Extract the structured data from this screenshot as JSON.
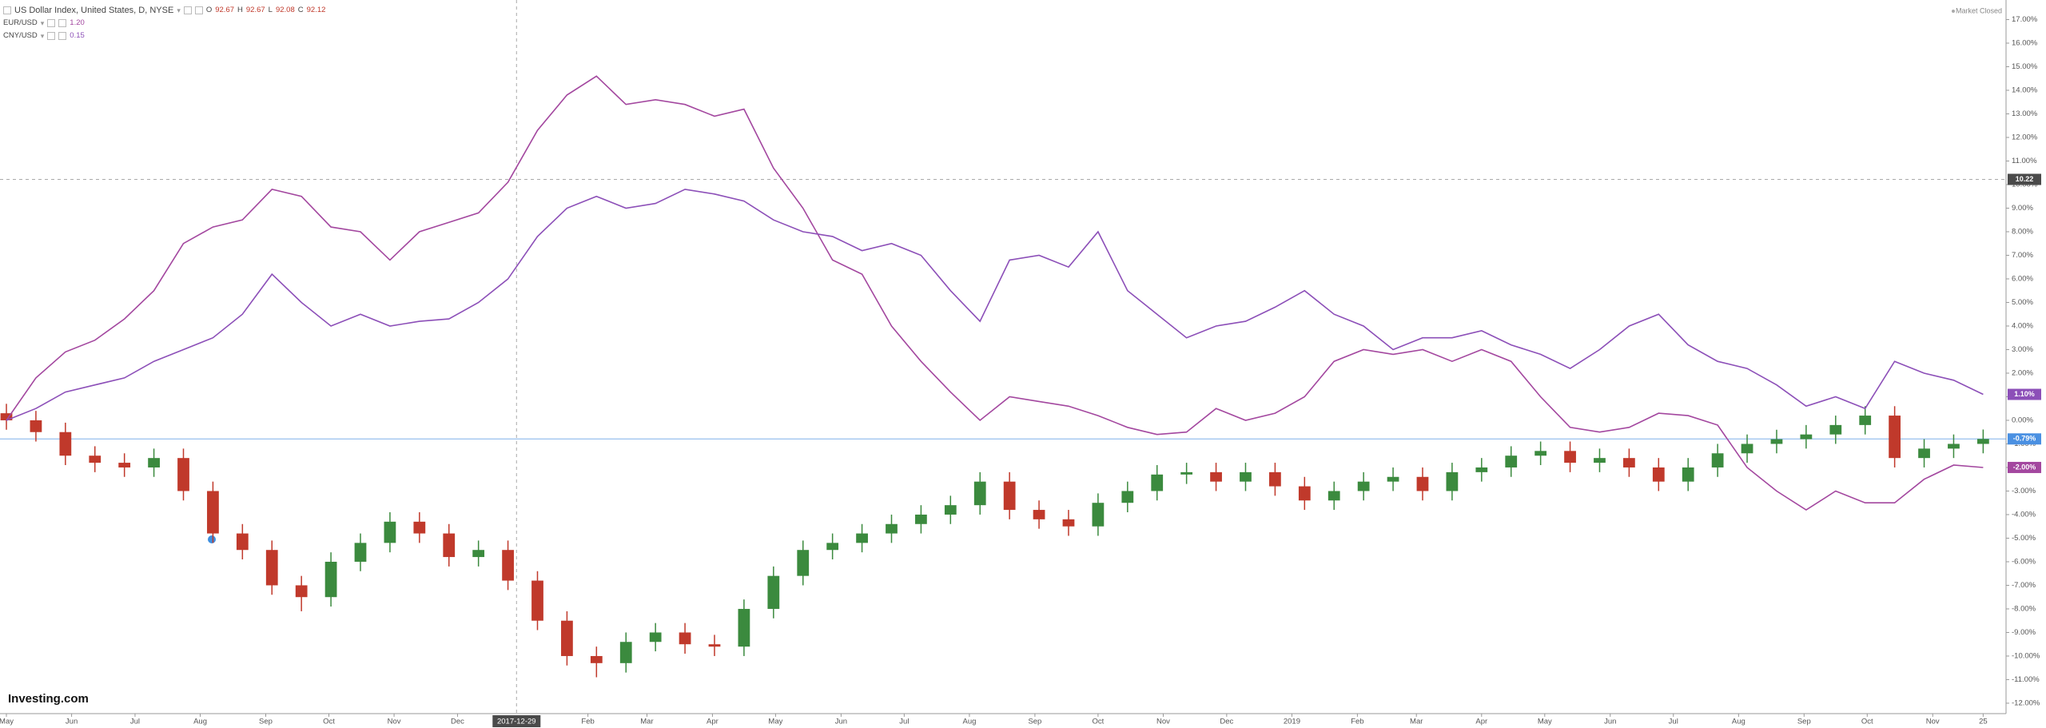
{
  "chart_data": {
    "type": "candlestick",
    "title": "US Dollar Index, United States, D, NYSE",
    "ohlc": [
      {
        "name": "O",
        "value": 92.67
      },
      {
        "name": "H",
        "value": 92.67
      },
      {
        "name": "L",
        "value": 92.08
      },
      {
        "name": "C",
        "value": 92.12
      }
    ],
    "market_status": "Market Closed",
    "logo": "Investing.com",
    "open": [
      0.3,
      0.0,
      -0.5,
      -1.5,
      -1.8,
      -2.0,
      -1.6,
      -3.0,
      -4.8,
      -5.5,
      -7.0,
      -7.5,
      -6.0,
      -5.2,
      -4.3,
      -4.8,
      -5.8,
      -5.5,
      -6.8,
      -8.5,
      -10.0,
      -10.3,
      -9.4,
      -9.0,
      -9.5,
      -9.6,
      -8.0,
      -6.6,
      -5.5,
      -5.2,
      -4.8,
      -4.4,
      -4.0,
      -3.6,
      -2.6,
      -3.8,
      -4.2,
      -4.5,
      -3.5,
      -3.0,
      -2.3,
      -2.2,
      -2.6,
      -2.2,
      -2.8,
      -3.4,
      -3.0,
      -2.6,
      -2.4,
      -3.0,
      -2.2,
      -2.0,
      -1.5,
      -1.3,
      -1.8,
      -1.6,
      -2.0,
      -2.6,
      -2.0,
      -1.4,
      -1.0,
      -0.8,
      -0.6,
      -0.2,
      0.2,
      -1.6,
      -1.2,
      -1.0
    ],
    "high": [
      0.7,
      0.4,
      -0.1,
      -1.1,
      -1.4,
      -1.2,
      -1.2,
      -2.6,
      -4.4,
      -5.1,
      -6.6,
      -5.6,
      -4.8,
      -3.9,
      -3.9,
      -4.4,
      -5.1,
      -5.1,
      -6.4,
      -8.1,
      -9.6,
      -9.0,
      -8.6,
      -8.6,
      -9.1,
      -7.6,
      -6.2,
      -5.1,
      -4.8,
      -4.4,
      -4.0,
      -3.6,
      -3.2,
      -2.2,
      -2.2,
      -3.4,
      -3.8,
      -3.1,
      -2.6,
      -1.9,
      -1.8,
      -1.8,
      -1.8,
      -1.8,
      -2.4,
      -2.6,
      -2.2,
      -2.0,
      -2.0,
      -1.8,
      -1.6,
      -1.1,
      -0.9,
      -0.9,
      -1.2,
      -1.2,
      -1.6,
      -1.6,
      -1.0,
      -0.6,
      -0.4,
      -0.2,
      0.2,
      0.6,
      0.6,
      -0.8,
      -0.6,
      -0.39
    ],
    "low": [
      -0.4,
      -0.9,
      -1.9,
      -2.2,
      -2.4,
      -2.4,
      -3.4,
      -5.2,
      -5.9,
      -7.4,
      -8.1,
      -7.9,
      -6.4,
      -5.6,
      -5.2,
      -6.2,
      -6.2,
      -7.2,
      -8.9,
      -10.4,
      -10.9,
      -10.7,
      -9.8,
      -9.9,
      -10.0,
      -10.0,
      -8.4,
      -7.0,
      -5.9,
      -5.6,
      -5.2,
      -4.8,
      -4.4,
      -4.0,
      -4.2,
      -4.6,
      -4.9,
      -4.9,
      -3.9,
      -3.4,
      -2.7,
      -3.0,
      -3.0,
      -3.2,
      -3.8,
      -3.8,
      -3.4,
      -3.0,
      -3.4,
      -3.4,
      -2.6,
      -2.4,
      -1.9,
      -2.2,
      -2.2,
      -2.4,
      -3.0,
      -3.0,
      -2.4,
      -1.8,
      -1.4,
      -1.2,
      -1.0,
      -0.6,
      -2.0,
      -2.0,
      -1.6,
      -1.4
    ],
    "close": [
      0.0,
      -0.5,
      -1.5,
      -1.8,
      -2.0,
      -1.6,
      -3.0,
      -4.8,
      -5.5,
      -7.0,
      -7.5,
      -6.0,
      -5.2,
      -4.3,
      -4.8,
      -5.8,
      -5.5,
      -6.8,
      -8.5,
      -10.0,
      -10.3,
      -9.4,
      -9.0,
      -9.5,
      -9.6,
      -8.0,
      -6.6,
      -5.5,
      -5.2,
      -4.8,
      -4.4,
      -4.0,
      -3.6,
      -2.6,
      -3.8,
      -4.2,
      -4.5,
      -3.5,
      -3.0,
      -2.3,
      -2.2,
      -2.6,
      -2.2,
      -2.8,
      -3.4,
      -3.0,
      -2.6,
      -2.4,
      -3.0,
      -2.2,
      -2.0,
      -1.5,
      -1.3,
      -1.8,
      -1.6,
      -2.0,
      -2.6,
      -2.0,
      -1.4,
      -1.0,
      -0.8,
      -0.6,
      -0.2,
      0.2,
      -1.6,
      -1.2,
      -1.0,
      -0.79
    ],
    "close_labels": [
      null,
      null,
      null,
      null,
      null,
      null,
      null,
      null,
      null,
      null,
      null,
      null,
      null,
      null,
      null,
      null,
      null,
      null,
      null,
      null,
      null,
      null,
      null,
      null,
      null,
      null,
      null,
      null,
      null,
      null,
      null,
      null,
      null,
      null,
      null,
      null,
      null,
      null,
      null,
      null,
      null,
      null,
      null,
      null,
      null,
      null,
      null,
      null,
      null,
      null,
      null,
      null,
      null,
      null,
      null,
      null,
      null,
      null,
      null,
      null,
      null,
      null,
      null,
      null,
      null,
      null,
      null,
      "-0.79%"
    ],
    "up_color": "#3b8a3e",
    "down_color": "#c0392b",
    "last_line_color": "#4a90e2",
    "series": [
      {
        "name": "EUR/USD",
        "color": "#a3479f",
        "crosshair_value": {
          "value": 1.2,
          "label": "1.20"
        },
        "values": [
          0,
          1.8,
          2.9,
          3.4,
          4.3,
          5.5,
          7.5,
          8.2,
          8.5,
          9.8,
          9.5,
          8.2,
          8.0,
          6.8,
          8.0,
          8.4,
          8.8,
          10.1,
          12.3,
          13.8,
          14.6,
          13.4,
          13.6,
          13.4,
          12.9,
          13.2,
          10.7,
          9.0,
          6.8,
          6.2,
          4.0,
          2.5,
          1.2,
          0.0,
          1.0,
          0.8,
          0.6,
          0.2,
          -0.3,
          -0.6,
          -0.5,
          0.5,
          0.0,
          0.3,
          1.0,
          2.5,
          3.0,
          2.8,
          3.0,
          2.5,
          3.0,
          2.5,
          1.0,
          -0.3,
          -0.5,
          -0.3,
          0.3,
          0.2,
          -0.2,
          -2.0,
          -3.0,
          -3.8,
          -3.0,
          -3.5,
          -3.5,
          -2.5,
          -1.9,
          -2.0
        ],
        "value_labels": [
          null,
          null,
          null,
          null,
          null,
          null,
          null,
          null,
          null,
          null,
          null,
          null,
          null,
          null,
          null,
          null,
          null,
          null,
          null,
          null,
          null,
          null,
          null,
          null,
          null,
          null,
          null,
          null,
          null,
          null,
          null,
          null,
          null,
          null,
          null,
          null,
          null,
          null,
          null,
          null,
          null,
          null,
          null,
          null,
          null,
          null,
          null,
          null,
          null,
          null,
          null,
          null,
          null,
          null,
          null,
          null,
          null,
          null,
          null,
          null,
          null,
          null,
          null,
          null,
          null,
          null,
          null,
          "-2.00%"
        ]
      },
      {
        "name": "CNY/USD",
        "color": "#8c4fb8",
        "crosshair_value": 0.15,
        "values": [
          0,
          0.5,
          1.2,
          1.5,
          1.8,
          2.5,
          3.0,
          3.5,
          4.5,
          6.2,
          5.0,
          4.0,
          4.5,
          4.0,
          4.2,
          4.3,
          5.0,
          6.0,
          7.8,
          9.0,
          9.5,
          9.0,
          9.2,
          9.8,
          9.6,
          9.3,
          8.5,
          8.0,
          7.8,
          7.2,
          7.5,
          7.0,
          5.5,
          4.2,
          6.8,
          7.0,
          6.5,
          8.0,
          5.5,
          4.5,
          3.5,
          4.0,
          4.2,
          4.8,
          5.5,
          4.5,
          4.0,
          3.0,
          3.5,
          3.5,
          3.8,
          3.2,
          2.8,
          2.2,
          3.0,
          4.0,
          4.5,
          3.2,
          2.5,
          2.2,
          1.5,
          0.6,
          1.0,
          0.5,
          2.5,
          2.0,
          1.7,
          1.1
        ],
        "value_labels": [
          null,
          null,
          null,
          null,
          null,
          null,
          null,
          null,
          null,
          null,
          null,
          null,
          null,
          null,
          null,
          null,
          null,
          null,
          null,
          null,
          null,
          null,
          null,
          null,
          null,
          null,
          null,
          null,
          null,
          null,
          null,
          null,
          null,
          null,
          null,
          null,
          null,
          null,
          null,
          null,
          null,
          null,
          null,
          null,
          null,
          null,
          null,
          null,
          null,
          null,
          null,
          null,
          null,
          null,
          null,
          null,
          null,
          null,
          null,
          null,
          null,
          null,
          null,
          null,
          null,
          null,
          null,
          "1.10%"
        ]
      }
    ],
    "xlim": [
      -0.217,
      67.64
    ],
    "xticks": [
      {
        "value": 0,
        "label": "May"
      },
      {
        "value": 2.21,
        "label": "Jun"
      },
      {
        "value": 4.36,
        "label": "Jul"
      },
      {
        "value": 6.57,
        "label": "Aug"
      },
      {
        "value": 8.79,
        "label": "Sep"
      },
      {
        "value": 10.93,
        "label": "Oct"
      },
      {
        "value": 13.14,
        "label": "Nov"
      },
      {
        "value": 15.29,
        "label": "Dec"
      },
      {
        "value": 19.71,
        "label": "Feb"
      },
      {
        "value": 21.71,
        "label": "Mar"
      },
      {
        "value": 23.93,
        "label": "Apr"
      },
      {
        "value": 26.07,
        "label": "May"
      },
      {
        "value": 28.29,
        "label": "Jun"
      },
      {
        "value": 30.43,
        "label": "Jul"
      },
      {
        "value": 32.64,
        "label": "Aug"
      },
      {
        "value": 34.86,
        "label": "Sep"
      },
      {
        "value": 37,
        "label": "Oct"
      },
      {
        "value": 39.21,
        "label": "Nov"
      },
      {
        "value": 41.36,
        "label": "Dec"
      },
      {
        "value": 43.57,
        "label": "2019"
      },
      {
        "value": 45.79,
        "label": "Feb"
      },
      {
        "value": 47.79,
        "label": "Mar"
      },
      {
        "value": 50,
        "label": "Apr"
      },
      {
        "value": 52.14,
        "label": "May"
      },
      {
        "value": 54.36,
        "label": "Jun"
      },
      {
        "value": 56.5,
        "label": "Jul"
      },
      {
        "value": 58.71,
        "label": "Aug"
      },
      {
        "value": 60.93,
        "label": "Sep"
      },
      {
        "value": 63.07,
        "label": "Oct"
      },
      {
        "value": 65.29,
        "label": "Nov"
      },
      {
        "value": 67,
        "label": "25"
      }
    ],
    "ylim": [
      -12.51,
      17.83
    ],
    "yticks": [
      {
        "value": 17,
        "label": "17.00%"
      },
      {
        "value": 16,
        "label": "16.00%"
      },
      {
        "value": 15,
        "label": "15.00%"
      },
      {
        "value": 14,
        "label": "14.00%"
      },
      {
        "value": 13,
        "label": "13.00%"
      },
      {
        "value": 12,
        "label": "12.00%"
      },
      {
        "value": 11,
        "label": "11.00%"
      },
      {
        "value": 10,
        "label": "10.00%"
      },
      {
        "value": 9,
        "label": "9.00%"
      },
      {
        "value": 8,
        "label": "8.00%"
      },
      {
        "value": 7,
        "label": "7.00%"
      },
      {
        "value": 6,
        "label": "6.00%"
      },
      {
        "value": 5,
        "label": "5.00%"
      },
      {
        "value": 4,
        "label": "4.00%"
      },
      {
        "value": 3,
        "label": "3.00%"
      },
      {
        "value": 2,
        "label": "2.00%"
      },
      {
        "value": 1,
        "label": "1.00%"
      },
      {
        "value": 0,
        "label": "0.00%"
      },
      {
        "value": -1,
        "label": "-1.00%"
      },
      {
        "value": -2,
        "label": "-2.00%"
      },
      {
        "value": -3,
        "label": "-3.00%"
      },
      {
        "value": -4,
        "label": "-4.00%"
      },
      {
        "value": -5,
        "label": "-5.00%"
      },
      {
        "value": -6,
        "label": "-6.00%"
      },
      {
        "value": -7,
        "label": "-7.00%"
      },
      {
        "value": -8,
        "label": "-8.00%"
      },
      {
        "value": -9,
        "label": "-9.00%"
      },
      {
        "value": -10,
        "label": "-10.00%"
      },
      {
        "value": -11,
        "label": "-11.00%"
      },
      {
        "value": -12,
        "label": "-12.00%"
      }
    ],
    "crosshair": {
      "x": {
        "value": 17.29,
        "label": "2017-12-29"
      },
      "y": 10.22
    },
    "grid": false
  }
}
